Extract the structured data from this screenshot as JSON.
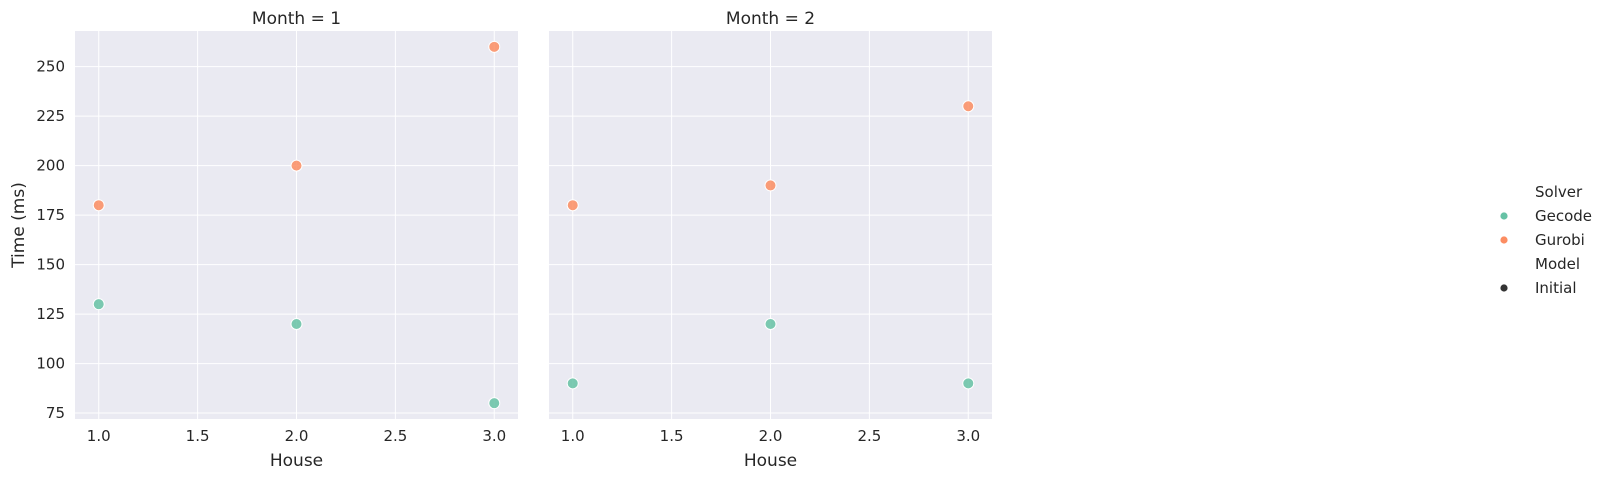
{
  "chart_data": {
    "type": "scatter",
    "ylabel": "Time (ms)",
    "xlabel": "House",
    "xlim": [
      0.88,
      3.12
    ],
    "ylim": [
      72,
      268
    ],
    "x_ticks": [
      "1.0",
      "1.5",
      "2.0",
      "2.5",
      "3.0"
    ],
    "y_ticks": [
      "75",
      "100",
      "125",
      "150",
      "175",
      "200",
      "225",
      "250"
    ],
    "grid": true,
    "panels": [
      {
        "title": "Month = 1",
        "series": [
          {
            "name": "Gecode",
            "color": "#66c2a5",
            "points": [
              [
                1.0,
                130
              ],
              [
                2.0,
                120
              ],
              [
                3.0,
                80
              ]
            ]
          },
          {
            "name": "Gurobi",
            "color": "#fc8d62",
            "points": [
              [
                1.0,
                180
              ],
              [
                2.0,
                200
              ],
              [
                3.0,
                260
              ]
            ]
          }
        ]
      },
      {
        "title": "Month = 2",
        "series": [
          {
            "name": "Gecode",
            "color": "#66c2a5",
            "points": [
              [
                1.0,
                90
              ],
              [
                2.0,
                120
              ],
              [
                3.0,
                90
              ]
            ]
          },
          {
            "name": "Gurobi",
            "color": "#fc8d62",
            "points": [
              [
                1.0,
                180
              ],
              [
                2.0,
                190
              ],
              [
                3.0,
                230
              ]
            ]
          }
        ]
      }
    ],
    "legend": {
      "placement": "right",
      "groups": [
        {
          "title": "Solver",
          "entries": [
            {
              "label": "Gecode",
              "color": "#66c2a5"
            },
            {
              "label": "Gurobi",
              "color": "#fc8d62"
            }
          ]
        },
        {
          "title": "Model",
          "entries": [
            {
              "label": "Initial",
              "color": "#333333"
            }
          ]
        }
      ]
    }
  }
}
